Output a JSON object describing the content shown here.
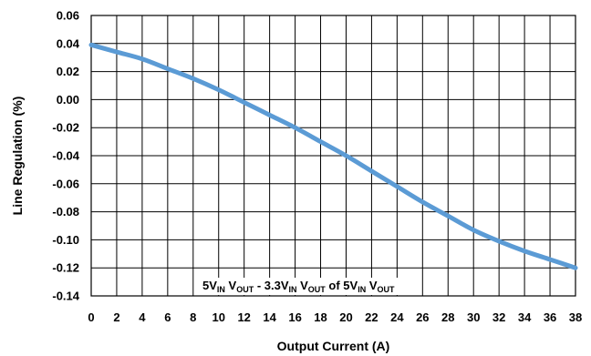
{
  "chart_data": {
    "type": "line",
    "title": "",
    "xlabel": "Output Current (A)",
    "ylabel": "Line Regulation (%)",
    "xlim": [
      0,
      38
    ],
    "ylim": [
      -0.14,
      0.06
    ],
    "grid": true,
    "x_ticks": [
      0,
      2,
      4,
      6,
      8,
      10,
      12,
      14,
      16,
      18,
      20,
      22,
      24,
      26,
      28,
      30,
      32,
      34,
      36,
      38
    ],
    "y_ticks": [
      -0.14,
      -0.12,
      -0.1,
      -0.08,
      -0.06,
      -0.04,
      -0.02,
      0.0,
      0.02,
      0.04,
      0.06
    ],
    "y_tick_labels": [
      "-0.14",
      "-0.12",
      "-0.10",
      "-0.08",
      "-0.06",
      "-0.04",
      "-0.02",
      "0.00",
      "0.02",
      "0.04",
      "0.06"
    ],
    "annotation": {
      "parts": [
        {
          "t": "5V"
        },
        {
          "t": "IN",
          "sub": true
        },
        {
          "t": " V"
        },
        {
          "t": "OUT",
          "sub": true
        },
        {
          "t": " - 3.3V"
        },
        {
          "t": "IN",
          "sub": true
        },
        {
          "t": " V"
        },
        {
          "t": "OUT",
          "sub": true
        },
        {
          "t": " of 5V"
        },
        {
          "t": "IN",
          "sub": true
        },
        {
          "t": " V"
        },
        {
          "t": "OUT",
          "sub": true
        }
      ],
      "position": "bottom-right"
    },
    "line_color": "#5b9bd5",
    "series": [
      {
        "x": [
          0,
          2,
          4,
          6,
          8,
          10,
          12,
          14,
          16,
          18,
          20,
          22,
          24,
          26,
          28,
          30,
          32,
          34,
          36,
          38
        ],
        "y": [
          0.039,
          0.034,
          0.029,
          0.022,
          0.015,
          0.007,
          -0.002,
          -0.011,
          -0.02,
          -0.03,
          -0.04,
          -0.051,
          -0.062,
          -0.073,
          -0.083,
          -0.093,
          -0.101,
          -0.108,
          -0.114,
          -0.12
        ]
      }
    ]
  }
}
